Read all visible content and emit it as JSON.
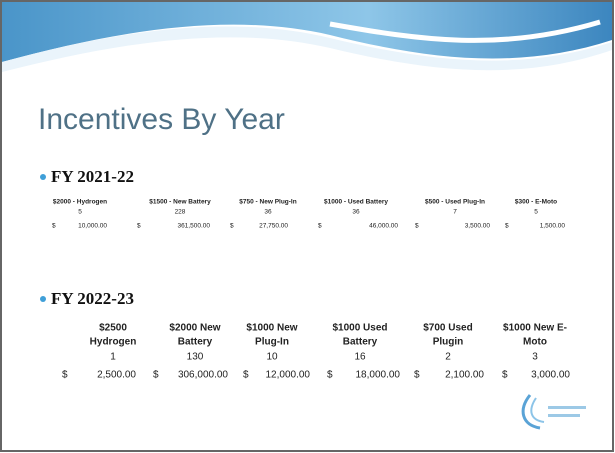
{
  "slide": {
    "title": "Incentives By Year",
    "currency": "$",
    "sections": [
      {
        "heading": "FY 2021-22",
        "headers": [
          [
            "$2000 - Hydrogen"
          ],
          [
            "$1500 - New Battery"
          ],
          [
            "$750 - New Plug-In"
          ],
          [
            "$1000 - Used Battery"
          ],
          [
            "$500 - Used Plug-In"
          ],
          [
            "$300 - E-Moto"
          ]
        ],
        "counts": [
          5,
          228,
          36,
          36,
          7,
          5
        ],
        "amounts": [
          "10,000.00",
          "361,500.00",
          "27,750.00",
          "46,000.00",
          "3,500.00",
          "1,500.00"
        ]
      },
      {
        "heading": "FY 2022-23",
        "headers": [
          [
            "$2500",
            "Hydrogen"
          ],
          [
            "$2000 New",
            "Battery"
          ],
          [
            "$1000 New",
            "Plug-In"
          ],
          [
            "$1000 Used",
            "Battery"
          ],
          [
            "$700 Used",
            "Plugin"
          ],
          [
            "$1000 New E-",
            "Moto"
          ]
        ],
        "counts": [
          1,
          130,
          10,
          16,
          2,
          3
        ],
        "amounts": [
          "2,500.00",
          "306,000.00",
          "12,000.00",
          "18,000.00",
          "2,100.00",
          "3,000.00"
        ]
      }
    ]
  }
}
